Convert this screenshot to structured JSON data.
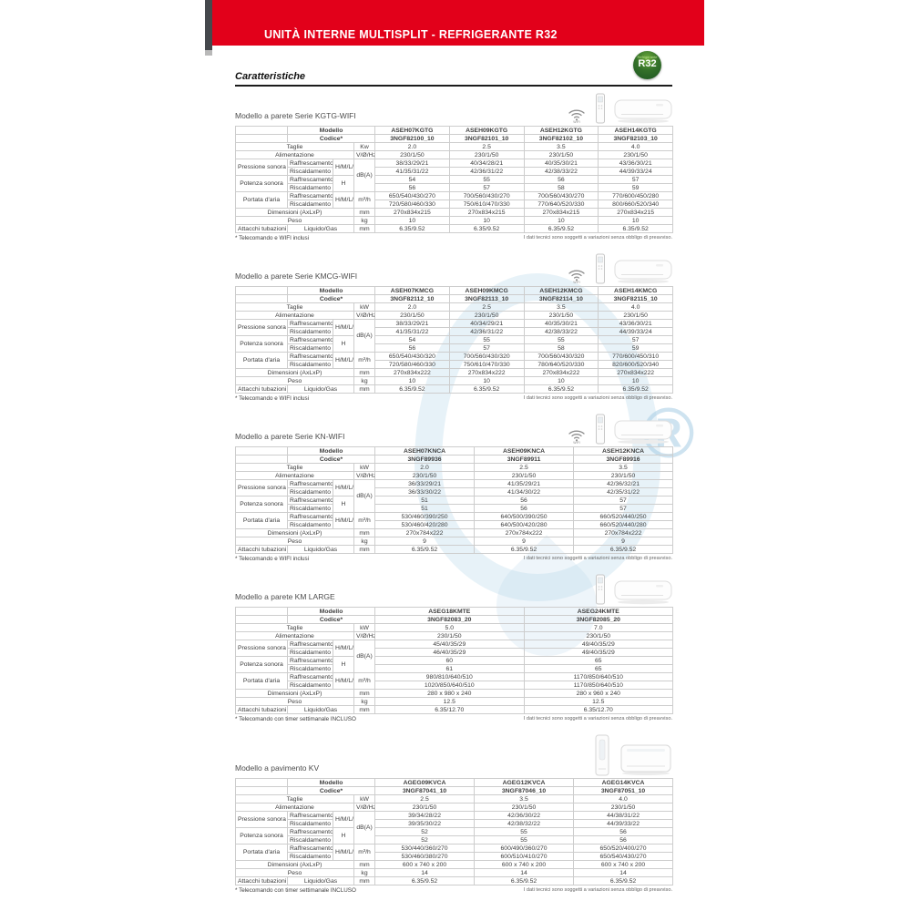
{
  "banner": {
    "title": "UNITÀ INTERNE MULTISPLIT - REFRIGERANTE R32"
  },
  "heading": "Caratteristiche",
  "badge": {
    "label_top": "Refrigerante",
    "label_main": "R32"
  },
  "labels": {
    "modello": "Modello",
    "codice": "Codice*",
    "taglie": "Taglie",
    "alimentazione": "Alimentazione",
    "pressione_sonora": "Pressione sonora",
    "potenza_sonora": "Potenza sonora",
    "portata_aria": "Portata d'aria",
    "dimensioni": "Dimensioni (AxLxP)",
    "peso": "Peso",
    "attacchi": "Attacchi tubazioni",
    "raffrescamento": "Raffrescamento",
    "riscaldamento": "Riscaldamento",
    "liquido_gas": "Liquido/Gas",
    "hmlq": "H/M/L/Q",
    "h": "H",
    "wifi": "WIFI"
  },
  "disclaimer": "I dati tecnici sono soggetti a variazioni senza obbligo di preavviso.",
  "colors": {
    "red": "#e2001a",
    "header_bg": "#e7e7e7",
    "border": "#cdcdcd"
  },
  "sections": [
    {
      "id": "kgtg-wifi",
      "title": "Modello a parete Serie KGTG-WIFI",
      "icons": [
        "wifi-icon",
        "remote-icon",
        "wall-unit-image"
      ],
      "footnote": "* Telecomando e WIFI inclusi",
      "units": {
        "taglie": "Kw",
        "alimentazione": "V/Ø/Hz",
        "sonora": "dB(A)",
        "portata": "m³/h",
        "dimensioni": "mm",
        "peso": "kg",
        "attacchi": "mm"
      },
      "models": [
        "ASEH07KGTG",
        "ASEH09KGTG",
        "ASEH12KGTG",
        "ASEH14KGTG"
      ],
      "codes": [
        "3NGF82100_10",
        "3NGF82101_10",
        "3NGF82102_10",
        "3NGF82103_10"
      ],
      "rows": {
        "taglie": [
          "2.0",
          "2.5",
          "3.5",
          "4.0"
        ],
        "alimentazione": [
          "230/1/50",
          "230/1/50",
          "230/1/50",
          "230/1/50"
        ],
        "pressione_raffrescamento": [
          "38/33/29/21",
          "40/34/28/21",
          "40/35/30/21",
          "43/36/30/21"
        ],
        "pressione_riscaldamento": [
          "41/35/31/22",
          "42/36/31/22",
          "42/38/33/22",
          "44/39/33/24"
        ],
        "potenza_raffrescamento": [
          "54",
          "55",
          "56",
          "57"
        ],
        "potenza_riscaldamento": [
          "56",
          "57",
          "58",
          "59"
        ],
        "portata_raffrescamento": [
          "650/540/430/270",
          "700/560/430/270",
          "700/560/430/270",
          "770/600/450/280"
        ],
        "portata_riscaldamento": [
          "720/580/460/330",
          "750/610/470/330",
          "770/640/520/330",
          "800/660/520/340"
        ],
        "dimensioni": [
          "270x834x215",
          "270x834x215",
          "270x834x215",
          "270x834x215"
        ],
        "peso": [
          "10",
          "10",
          "10",
          "10"
        ],
        "attacchi": [
          "6.35/9.52",
          "6.35/9.52",
          "6.35/9.52",
          "6.35/9.52"
        ]
      }
    },
    {
      "id": "kmcg-wifi",
      "title": "Modello a parete Serie KMCG-WIFI",
      "icons": [
        "wifi-icon",
        "remote-icon",
        "wall-unit-image"
      ],
      "footnote": "* Telecomando e WIFI inclusi",
      "units": {
        "taglie": "kW",
        "alimentazione": "V/Ø/Hz",
        "sonora": "dB(A)",
        "portata": "m³/h",
        "dimensioni": "mm",
        "peso": "kg",
        "attacchi": "mm"
      },
      "models": [
        "ASEH07KMCG",
        "ASEH09KMCG",
        "ASEH12KMCG",
        "ASEH14KMCG"
      ],
      "codes": [
        "3NGF82112_10",
        "3NGF82113_10",
        "3NGF82114_10",
        "3NGF82115_10"
      ],
      "rows": {
        "taglie": [
          "2.0",
          "2.5",
          "3.5",
          "4.0"
        ],
        "alimentazione": [
          "230/1/50",
          "230/1/50",
          "230/1/50",
          "230/1/50"
        ],
        "pressione_raffrescamento": [
          "38/33/29/21",
          "40/34/29/21",
          "40/35/30/21",
          "43/36/30/21"
        ],
        "pressione_riscaldamento": [
          "41/35/31/22",
          "42/36/31/22",
          "42/38/33/22",
          "44/39/33/24"
        ],
        "potenza_raffrescamento": [
          "54",
          "55",
          "55",
          "57"
        ],
        "potenza_riscaldamento": [
          "56",
          "57",
          "58",
          "59"
        ],
        "portata_raffrescamento": [
          "650/540/430/320",
          "700/560/430/320",
          "700/560/430/320",
          "770/600/450/310"
        ],
        "portata_riscaldamento": [
          "720/580/460/330",
          "750/610/470/330",
          "780/640/520/330",
          "820/600/520/340"
        ],
        "dimensioni": [
          "270x834x222",
          "270x834x222",
          "270x834x222",
          "270x834x222"
        ],
        "peso": [
          "10",
          "10",
          "10",
          "10"
        ],
        "attacchi": [
          "6.35/9.52",
          "6.35/9.52",
          "6.35/9.52",
          "6.35/9.52"
        ]
      }
    },
    {
      "id": "kn-wifi",
      "title": "Modello a parete Serie KN-WIFI",
      "icons": [
        "wifi-icon",
        "remote-icon",
        "wall-unit-image"
      ],
      "footnote": "* Telecomando e WIFI inclusi",
      "units": {
        "taglie": "kW",
        "alimentazione": "V/Ø/Hz",
        "sonora": "dB(A)",
        "portata": "m³/h",
        "dimensioni": "mm",
        "peso": "kg",
        "attacchi": "mm"
      },
      "models": [
        "ASEH07KNCA",
        "ASEH09KNCA",
        "ASEH12KNCA"
      ],
      "codes": [
        "3NGF89936",
        "3NGF89911",
        "3NGF89916"
      ],
      "rows": {
        "taglie": [
          "2.0",
          "2.5",
          "3.5"
        ],
        "alimentazione": [
          "230/1/50",
          "230/1/50",
          "230/1/50"
        ],
        "pressione_raffrescamento": [
          "36/33/29/21",
          "41/35/29/21",
          "42/36/32/21"
        ],
        "pressione_riscaldamento": [
          "36/33/30/22",
          "41/34/30/22",
          "42/35/31/22"
        ],
        "potenza_raffrescamento": [
          "51",
          "56",
          "57"
        ],
        "potenza_riscaldamento": [
          "51",
          "56",
          "57"
        ],
        "portata_raffrescamento": [
          "530/460/390/250",
          "640/500/390/250",
          "660/520/440/250"
        ],
        "portata_riscaldamento": [
          "530/460/420/280",
          "640/500/420/280",
          "660/520/440/280"
        ],
        "dimensioni": [
          "270x784x222",
          "270x784x222",
          "270x784x222"
        ],
        "peso": [
          "9",
          "9",
          "9"
        ],
        "attacchi": [
          "6.35/9.52",
          "6.35/9.52",
          "6.35/9.52"
        ]
      }
    },
    {
      "id": "km-large",
      "title": "Modello a parete KM LARGE",
      "icons": [
        "remote-icon",
        "wall-unit-image"
      ],
      "footnote": "* Telecomando con timer settimanale INCLUSO",
      "units": {
        "taglie": "kW",
        "alimentazione": "V/Ø/Hz",
        "sonora": "dB(A)",
        "portata": "m³/h",
        "dimensioni": "mm",
        "peso": "kg",
        "attacchi": "mm"
      },
      "models": [
        "ASEG18KMTE",
        "ASEG24KMTE"
      ],
      "codes": [
        "3NGF82083_20",
        "3NGF82085_20"
      ],
      "rows": {
        "taglie": [
          "5.0",
          "7.0"
        ],
        "alimentazione": [
          "230/1/50",
          "230/1/50"
        ],
        "pressione_raffrescamento": [
          "45/40/35/29",
          "49/40/35/29"
        ],
        "pressione_riscaldamento": [
          "46/40/35/29",
          "49/40/35/29"
        ],
        "potenza_raffrescamento": [
          "60",
          "65"
        ],
        "potenza_riscaldamento": [
          "61",
          "65"
        ],
        "portata_raffrescamento": [
          "980/810/640/510",
          "1170/850/640/510"
        ],
        "portata_riscaldamento": [
          "1020/850/640/510",
          "1170/850/640/510"
        ],
        "dimensioni": [
          "280 x 980 x 240",
          "280 x 960 x 240"
        ],
        "peso": [
          "12.5",
          "12.5"
        ],
        "attacchi": [
          "6.35/12.70",
          "6.35/12.70"
        ]
      }
    },
    {
      "id": "kv",
      "title": "Modello a pavimento KV",
      "icons": [
        "floor-console-image",
        "floor-unit-image"
      ],
      "footnote": "* Telecomando con timer settimanale INCLUSO",
      "units": {
        "taglie": "kW",
        "alimentazione": "V/Ø/Hz",
        "sonora": "dB(A)",
        "portata": "m³/h",
        "dimensioni": "mm",
        "peso": "kg",
        "attacchi": "mm"
      },
      "models": [
        "AGEG09KVCA",
        "AGEG12KVCA",
        "AGEG14KVCA"
      ],
      "codes": [
        "3NGF87041_10",
        "3NGF87046_10",
        "3NGF87051_10"
      ],
      "rows": {
        "taglie": [
          "2.5",
          "3.5",
          "4.0"
        ],
        "alimentazione": [
          "230/1/50",
          "230/1/50",
          "230/1/50"
        ],
        "pressione_raffrescamento": [
          "39/34/28/22",
          "42/36/30/22",
          "44/38/31/22"
        ],
        "pressione_riscaldamento": [
          "39/35/30/22",
          "42/38/32/22",
          "44/39/33/22"
        ],
        "potenza_raffrescamento": [
          "52",
          "55",
          "56"
        ],
        "potenza_riscaldamento": [
          "52",
          "55",
          "56"
        ],
        "portata_raffrescamento": [
          "530/440/360/270",
          "600/490/360/270",
          "650/520/400/270"
        ],
        "portata_riscaldamento": [
          "530/460/380/270",
          "600/510/410/270",
          "650/540/430/270"
        ],
        "dimensioni": [
          "600 x 740 x 200",
          "600 x 740 x 200",
          "600 x 740 x 200"
        ],
        "peso": [
          "14",
          "14",
          "14"
        ],
        "attacchi": [
          "6.35/9.52",
          "6.35/9.52",
          "6.35/9.52"
        ]
      }
    }
  ]
}
